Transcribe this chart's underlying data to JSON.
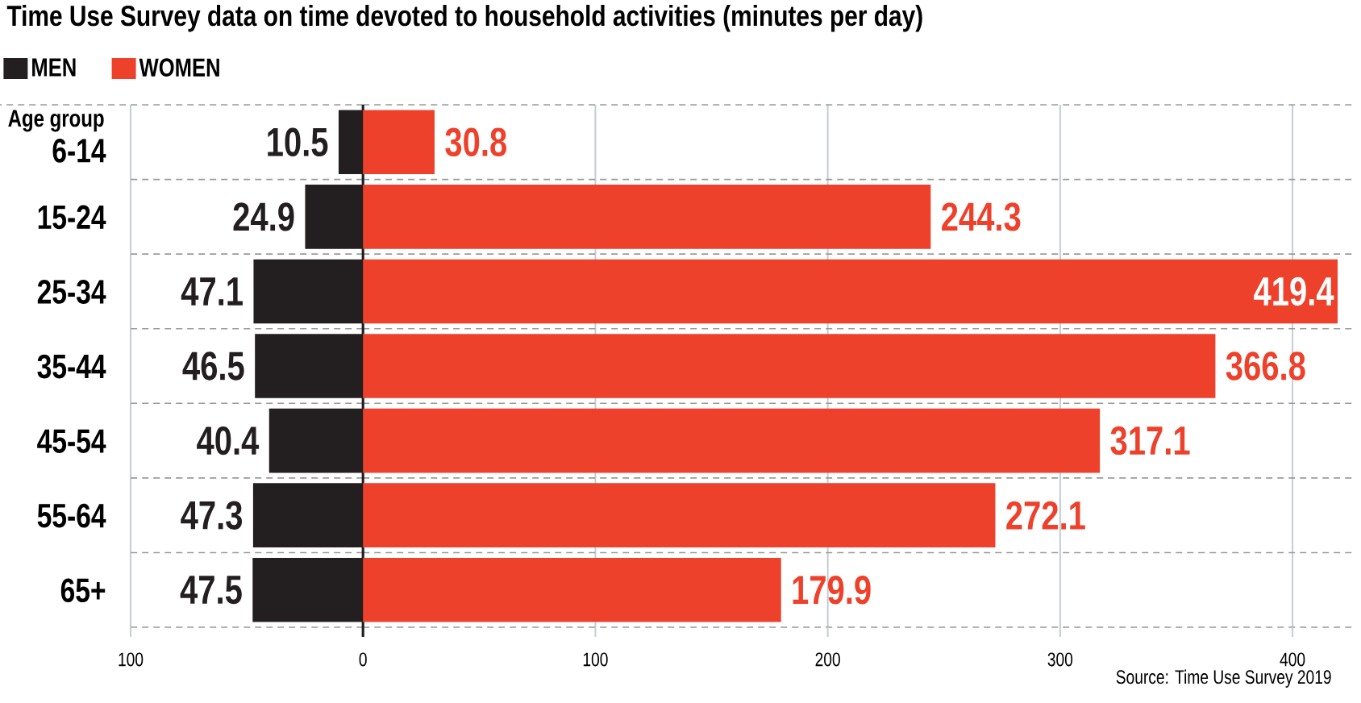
{
  "chart_data": [
    {
      "type": "bar",
      "orientation": "horizontal",
      "title": "Time Use Survey data on time devoted to household activities (minutes per day)",
      "ylabel": "Age group",
      "categories": [
        "6-14",
        "15-24",
        "25-34",
        "35-44",
        "45-54",
        "55-64",
        "65+"
      ],
      "series": [
        {
          "name": "MEN",
          "color": "#231f20",
          "values": [
            10.5,
            24.9,
            47.1,
            46.5,
            40.4,
            47.3,
            47.5
          ]
        }
      ],
      "data_labels": true,
      "xlim": [
        100,
        0
      ],
      "xticks": [
        100,
        0
      ],
      "grid": true,
      "legend": "top left"
    },
    {
      "type": "bar",
      "orientation": "horizontal",
      "categories": [
        null,
        null,
        null,
        null,
        null,
        null,
        null
      ],
      "series": [
        {
          "name": "WOMEN",
          "color": "#ee412b",
          "values": [
            30.8,
            244.3,
            419.4,
            366.8,
            317.1,
            272.1,
            179.9
          ]
        }
      ],
      "data_labels": true,
      "xlim": [
        0,
        426
      ],
      "xticks": [
        {
          "value": 0,
          "label": null
        },
        100,
        200,
        300,
        400
      ],
      "grid": true,
      "legend": "top left",
      "annotations": [
        "Source: Time Use Survey 2019"
      ]
    }
  ]
}
